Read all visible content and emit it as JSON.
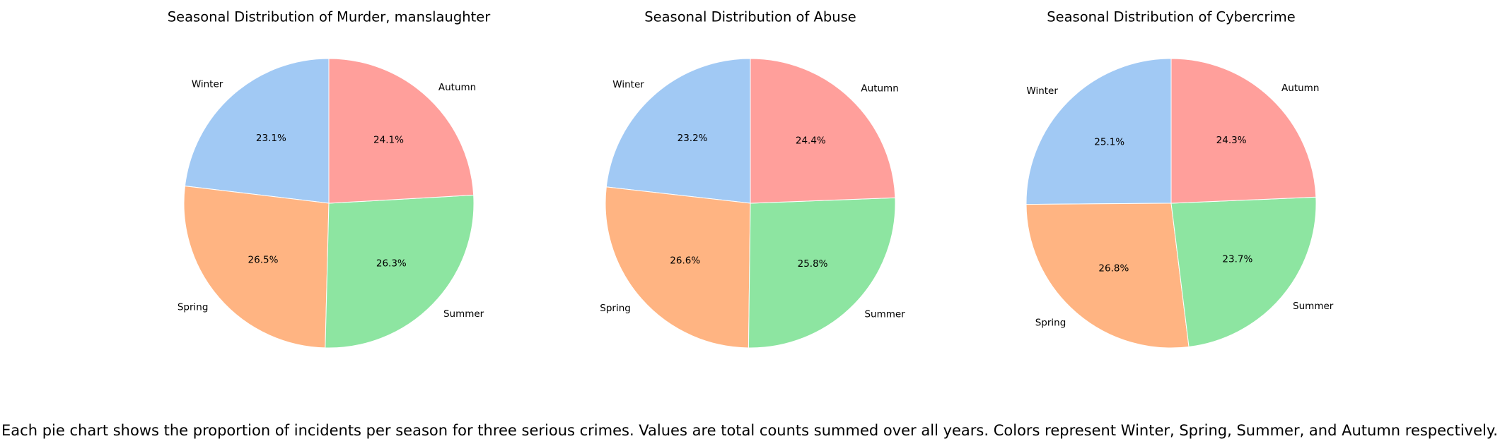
{
  "chart_data": [
    {
      "type": "pie",
      "title": "Seasonal Distribution of Murder, manslaughter",
      "categories": [
        "Winter",
        "Spring",
        "Summer",
        "Autumn"
      ],
      "values": [
        23.1,
        26.5,
        26.3,
        24.1
      ],
      "value_labels": [
        "23.1%",
        "26.5%",
        "26.3%",
        "24.1%"
      ]
    },
    {
      "type": "pie",
      "title": "Seasonal Distribution of Abuse",
      "categories": [
        "Winter",
        "Spring",
        "Summer",
        "Autumn"
      ],
      "values": [
        23.2,
        26.6,
        25.8,
        24.4
      ],
      "value_labels": [
        "23.2%",
        "26.6%",
        "25.8%",
        "24.4%"
      ]
    },
    {
      "type": "pie",
      "title": "Seasonal Distribution of Cybercrime",
      "categories": [
        "Winter",
        "Spring",
        "Summer",
        "Autumn"
      ],
      "values": [
        25.1,
        26.8,
        23.7,
        24.3
      ],
      "value_labels": [
        "25.1%",
        "26.8%",
        "23.7%",
        "24.3%"
      ]
    }
  ],
  "colors": {
    "Winter": "#a1c9f4",
    "Spring": "#ffb482",
    "Summer": "#8de5a1",
    "Autumn": "#ff9f9b"
  },
  "caption": "Each pie chart shows the proportion of incidents per season for three serious crimes. Values are total counts summed over all years. Colors represent Winter, Spring, Summer, and Autumn respectively."
}
